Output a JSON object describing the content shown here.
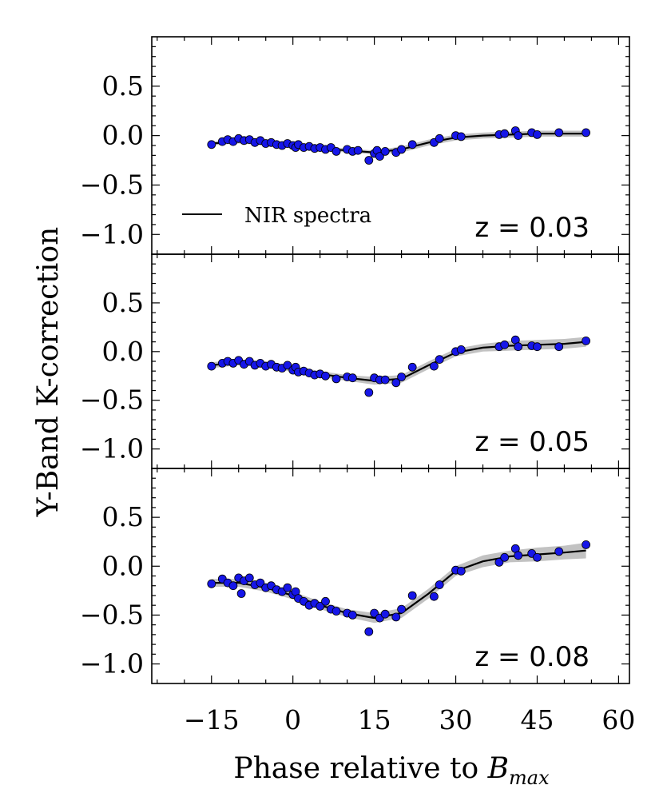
{
  "chart_data": {
    "type": "scatter",
    "ylabel": "Y-Band K-correction",
    "xlabel_prefix": "Phase relative to ",
    "xlabel_symbol": "B",
    "xlabel_subscript": "max",
    "legend": "NIR spectra",
    "xlim": [
      -26,
      62
    ],
    "ylim": [
      -1.2,
      1.0
    ],
    "xticks": [
      -15,
      0,
      15,
      30,
      45,
      60
    ],
    "xtick_labels": [
      "−15",
      "0",
      "15",
      "30",
      "45",
      "60"
    ],
    "yticks": [
      0.5,
      0.0,
      -0.5,
      -1.0
    ],
    "ytick_labels": [
      "0.5",
      "0.0",
      "−0.5",
      "−1.0"
    ],
    "panels": [
      {
        "z_label": "z = 0.03",
        "model": {
          "x": [
            -15,
            -10,
            -5,
            0,
            5,
            10,
            15,
            20,
            25,
            30,
            35,
            40,
            45,
            50,
            54
          ],
          "y": [
            -0.08,
            -0.06,
            -0.08,
            -0.11,
            -0.13,
            -0.15,
            -0.17,
            -0.14,
            -0.07,
            -0.02,
            0.0,
            0.01,
            0.02,
            0.02,
            0.02
          ],
          "band": [
            0.02,
            0.02,
            0.02,
            0.02,
            0.02,
            0.02,
            0.02,
            0.03,
            0.03,
            0.03,
            0.03,
            0.03,
            0.03,
            0.03,
            0.03
          ]
        },
        "points": [
          {
            "x": -15,
            "y": -0.09
          },
          {
            "x": -13,
            "y": -0.06
          },
          {
            "x": -12,
            "y": -0.04
          },
          {
            "x": -11,
            "y": -0.06
          },
          {
            "x": -10,
            "y": -0.03
          },
          {
            "x": -9,
            "y": -0.05
          },
          {
            "x": -8,
            "y": -0.04
          },
          {
            "x": -7,
            "y": -0.07
          },
          {
            "x": -6,
            "y": -0.05
          },
          {
            "x": -5,
            "y": -0.08
          },
          {
            "x": -4,
            "y": -0.07
          },
          {
            "x": -3,
            "y": -0.09
          },
          {
            "x": -2,
            "y": -0.1
          },
          {
            "x": -1,
            "y": -0.08
          },
          {
            "x": 0,
            "y": -0.1
          },
          {
            "x": 0.5,
            "y": -0.12
          },
          {
            "x": 1,
            "y": -0.09
          },
          {
            "x": 2,
            "y": -0.12
          },
          {
            "x": 3,
            "y": -0.11
          },
          {
            "x": 4,
            "y": -0.13
          },
          {
            "x": 5,
            "y": -0.12
          },
          {
            "x": 6,
            "y": -0.14
          },
          {
            "x": 7,
            "y": -0.12
          },
          {
            "x": 8,
            "y": -0.16
          },
          {
            "x": 10,
            "y": -0.14
          },
          {
            "x": 11,
            "y": -0.16
          },
          {
            "x": 12,
            "y": -0.15
          },
          {
            "x": 14,
            "y": -0.25
          },
          {
            "x": 15,
            "y": -0.18
          },
          {
            "x": 15.5,
            "y": -0.15
          },
          {
            "x": 16,
            "y": -0.21
          },
          {
            "x": 17,
            "y": -0.16
          },
          {
            "x": 19,
            "y": -0.17
          },
          {
            "x": 20,
            "y": -0.14
          },
          {
            "x": 22,
            "y": -0.09
          },
          {
            "x": 26,
            "y": -0.07
          },
          {
            "x": 27,
            "y": -0.03
          },
          {
            "x": 30,
            "y": 0.0
          },
          {
            "x": 31,
            "y": -0.01
          },
          {
            "x": 38,
            "y": 0.01
          },
          {
            "x": 39,
            "y": 0.02
          },
          {
            "x": 41,
            "y": 0.05
          },
          {
            "x": 41.5,
            "y": 0.0
          },
          {
            "x": 44,
            "y": 0.03
          },
          {
            "x": 45,
            "y": 0.01
          },
          {
            "x": 49,
            "y": 0.03
          },
          {
            "x": 54,
            "y": 0.03
          }
        ]
      },
      {
        "z_label": "z = 0.05",
        "model": {
          "x": [
            -15,
            -10,
            -5,
            0,
            5,
            10,
            15,
            20,
            25,
            30,
            35,
            40,
            45,
            50,
            54
          ],
          "y": [
            -0.14,
            -0.11,
            -0.13,
            -0.18,
            -0.23,
            -0.27,
            -0.3,
            -0.28,
            -0.14,
            -0.01,
            0.04,
            0.06,
            0.07,
            0.08,
            0.1
          ],
          "band": [
            0.03,
            0.03,
            0.03,
            0.03,
            0.03,
            0.03,
            0.04,
            0.04,
            0.04,
            0.04,
            0.04,
            0.05,
            0.05,
            0.05,
            0.05
          ]
        },
        "points": [
          {
            "x": -15,
            "y": -0.15
          },
          {
            "x": -13,
            "y": -0.12
          },
          {
            "x": -12,
            "y": -0.1
          },
          {
            "x": -11,
            "y": -0.12
          },
          {
            "x": -10,
            "y": -0.09
          },
          {
            "x": -9,
            "y": -0.13
          },
          {
            "x": -8,
            "y": -0.1
          },
          {
            "x": -7,
            "y": -0.14
          },
          {
            "x": -6,
            "y": -0.12
          },
          {
            "x": -5,
            "y": -0.15
          },
          {
            "x": -4,
            "y": -0.13
          },
          {
            "x": -3,
            "y": -0.16
          },
          {
            "x": -2,
            "y": -0.17
          },
          {
            "x": -1,
            "y": -0.14
          },
          {
            "x": 0,
            "y": -0.19
          },
          {
            "x": 0.5,
            "y": -0.16
          },
          {
            "x": 1,
            "y": -0.21
          },
          {
            "x": 2,
            "y": -0.2
          },
          {
            "x": 3,
            "y": -0.22
          },
          {
            "x": 4,
            "y": -0.24
          },
          {
            "x": 5,
            "y": -0.23
          },
          {
            "x": 6,
            "y": -0.25
          },
          {
            "x": 8,
            "y": -0.28
          },
          {
            "x": 10,
            "y": -0.26
          },
          {
            "x": 11,
            "y": -0.27
          },
          {
            "x": 14,
            "y": -0.42
          },
          {
            "x": 15,
            "y": -0.27
          },
          {
            "x": 16,
            "y": -0.29
          },
          {
            "x": 17,
            "y": -0.29
          },
          {
            "x": 19,
            "y": -0.32
          },
          {
            "x": 20,
            "y": -0.26
          },
          {
            "x": 22,
            "y": -0.16
          },
          {
            "x": 26,
            "y": -0.15
          },
          {
            "x": 27,
            "y": -0.08
          },
          {
            "x": 30,
            "y": 0.0
          },
          {
            "x": 31,
            "y": 0.02
          },
          {
            "x": 38,
            "y": 0.05
          },
          {
            "x": 39,
            "y": 0.07
          },
          {
            "x": 41,
            "y": 0.12
          },
          {
            "x": 41.5,
            "y": 0.05
          },
          {
            "x": 44,
            "y": 0.06
          },
          {
            "x": 45,
            "y": 0.05
          },
          {
            "x": 49,
            "y": 0.05
          },
          {
            "x": 54,
            "y": 0.11
          }
        ]
      },
      {
        "z_label": "z = 0.08",
        "model": {
          "x": [
            -15,
            -10,
            -5,
            0,
            5,
            10,
            15,
            20,
            25,
            30,
            35,
            40,
            45,
            50,
            54
          ],
          "y": [
            -0.17,
            -0.17,
            -0.22,
            -0.3,
            -0.4,
            -0.48,
            -0.53,
            -0.48,
            -0.28,
            -0.05,
            0.05,
            0.1,
            0.12,
            0.14,
            0.16
          ],
          "band": [
            0.04,
            0.04,
            0.04,
            0.04,
            0.04,
            0.04,
            0.05,
            0.05,
            0.05,
            0.05,
            0.06,
            0.06,
            0.07,
            0.07,
            0.08
          ]
        },
        "points": [
          {
            "x": -15,
            "y": -0.18
          },
          {
            "x": -13,
            "y": -0.13
          },
          {
            "x": -12,
            "y": -0.17
          },
          {
            "x": -11,
            "y": -0.2
          },
          {
            "x": -10,
            "y": -0.12
          },
          {
            "x": -9.5,
            "y": -0.28
          },
          {
            "x": -9,
            "y": -0.15
          },
          {
            "x": -8,
            "y": -0.12
          },
          {
            "x": -7,
            "y": -0.19
          },
          {
            "x": -6,
            "y": -0.17
          },
          {
            "x": -5,
            "y": -0.22
          },
          {
            "x": -4,
            "y": -0.2
          },
          {
            "x": -3,
            "y": -0.24
          },
          {
            "x": -2,
            "y": -0.26
          },
          {
            "x": -1,
            "y": -0.22
          },
          {
            "x": 0,
            "y": -0.29
          },
          {
            "x": 0.5,
            "y": -0.26
          },
          {
            "x": 1,
            "y": -0.33
          },
          {
            "x": 2,
            "y": -0.36
          },
          {
            "x": 3,
            "y": -0.4
          },
          {
            "x": 4,
            "y": -0.38
          },
          {
            "x": 5,
            "y": -0.41
          },
          {
            "x": 6,
            "y": -0.36
          },
          {
            "x": 7,
            "y": -0.44
          },
          {
            "x": 8,
            "y": -0.46
          },
          {
            "x": 10,
            "y": -0.48
          },
          {
            "x": 11,
            "y": -0.5
          },
          {
            "x": 14,
            "y": -0.67
          },
          {
            "x": 15,
            "y": -0.48
          },
          {
            "x": 16,
            "y": -0.53
          },
          {
            "x": 17,
            "y": -0.49
          },
          {
            "x": 19,
            "y": -0.52
          },
          {
            "x": 20,
            "y": -0.44
          },
          {
            "x": 22,
            "y": -0.3
          },
          {
            "x": 26,
            "y": -0.31
          },
          {
            "x": 27,
            "y": -0.19
          },
          {
            "x": 30,
            "y": -0.04
          },
          {
            "x": 31,
            "y": -0.05
          },
          {
            "x": 38,
            "y": 0.04
          },
          {
            "x": 39,
            "y": 0.09
          },
          {
            "x": 41,
            "y": 0.18
          },
          {
            "x": 41.5,
            "y": 0.11
          },
          {
            "x": 44,
            "y": 0.13
          },
          {
            "x": 45,
            "y": 0.09
          },
          {
            "x": 49,
            "y": 0.15
          },
          {
            "x": 54,
            "y": 0.22
          }
        ]
      }
    ]
  }
}
